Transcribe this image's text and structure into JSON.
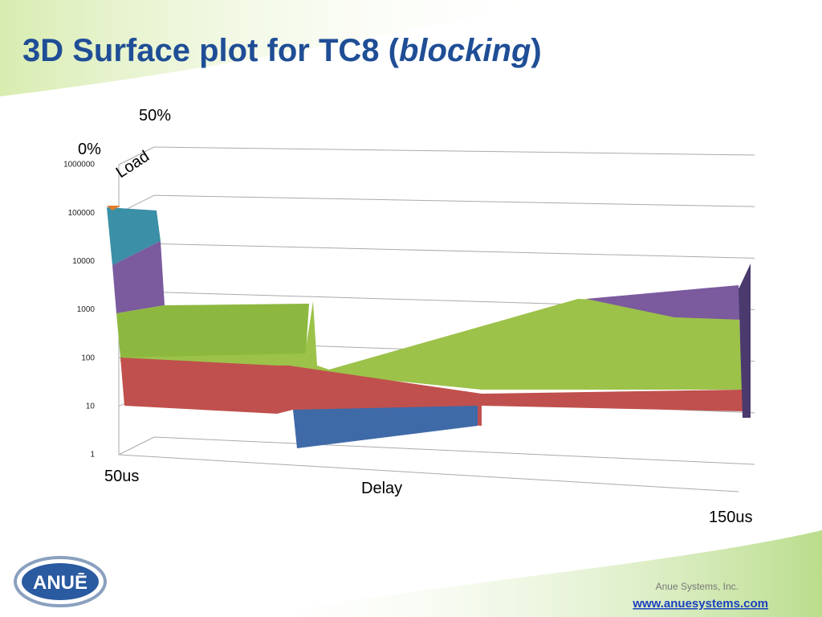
{
  "title": {
    "prefix": "3D Surface plot for TC8 (",
    "emphasis": "blocking",
    "suffix": ")"
  },
  "plot": {
    "load_end": "50%",
    "load_start": "0%",
    "load_label": "Load",
    "delay_start": "50us",
    "delay_label": "Delay",
    "delay_end": "150us",
    "ticks": [
      "1000000",
      "100000",
      "10000",
      "1000",
      "100",
      "10",
      "1"
    ]
  },
  "logo": "ANUĒ",
  "footer": {
    "company": "Anue Systems, Inc.",
    "url": "www.anuesystems.com"
  }
}
